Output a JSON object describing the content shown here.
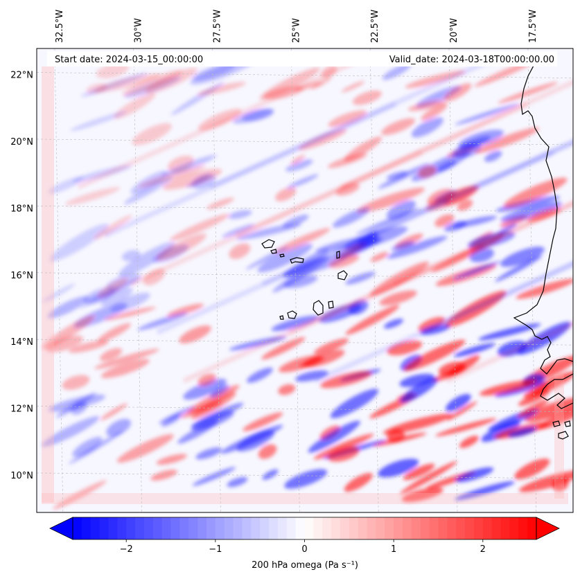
{
  "header": {
    "start_date": "Start date: 2024-03-15_00:00:00",
    "valid_date": "Valid_date: 2024-03-18T00:00:00.00"
  },
  "map": {
    "extent": {
      "lon_min": -33.2,
      "lon_max": -16.2,
      "lat_min": 8.9,
      "lat_max": 22.8
    },
    "lon_ticks": [
      {
        "value": -32.5,
        "label": "32.5°W"
      },
      {
        "value": -30.0,
        "label": "30°W"
      },
      {
        "value": -27.5,
        "label": "27.5°W"
      },
      {
        "value": -25.0,
        "label": "25°W"
      },
      {
        "value": -22.5,
        "label": "22.5°W"
      },
      {
        "value": -20.0,
        "label": "20°W"
      },
      {
        "value": -17.5,
        "label": "17.5°W"
      }
    ],
    "lat_ticks": [
      {
        "value": 22,
        "label": "22°N"
      },
      {
        "value": 20,
        "label": "20°N"
      },
      {
        "value": 18,
        "label": "18°N"
      },
      {
        "value": 16,
        "label": "16°N"
      },
      {
        "value": 14,
        "label": "14°N"
      },
      {
        "value": 12,
        "label": "12°N"
      },
      {
        "value": 10,
        "label": "10°N"
      }
    ],
    "gridlines": true,
    "field_colors": {
      "negative": "#0000ff",
      "zero": "#ffffff",
      "positive": "#ff0000"
    }
  },
  "colorbar": {
    "label": "200 hPa omega (Pa s⁻¹)",
    "range": [
      -2.6,
      2.6
    ],
    "ticks": [
      {
        "value": -2,
        "label": "−2"
      },
      {
        "value": -1,
        "label": "−1"
      },
      {
        "value": 0,
        "label": "0"
      },
      {
        "value": 1,
        "label": "1"
      },
      {
        "value": 2,
        "label": "2"
      }
    ],
    "extend": "both"
  }
}
